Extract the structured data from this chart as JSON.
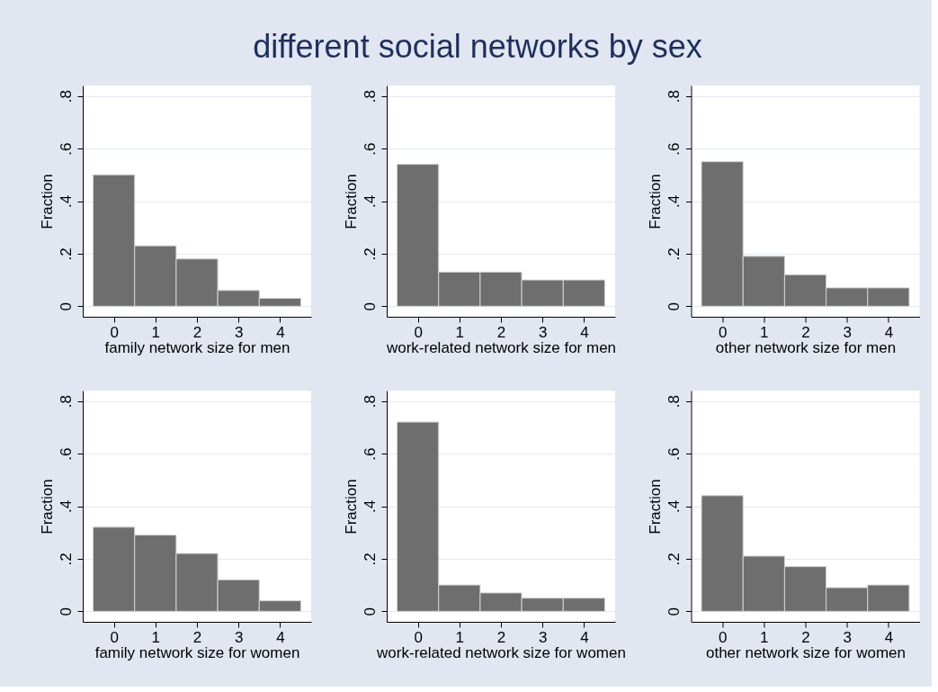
{
  "chart_data": [
    {
      "type": "other",
      "title": "different social networks by sex"
    },
    {
      "type": "histogram",
      "bins": [
        -0.5,
        0.5,
        1.5,
        2.5,
        3.5,
        4.5
      ],
      "values": [
        0.5,
        0.23,
        0.18,
        0.06,
        0.03
      ],
      "color": "#6e6e6e",
      "xlabel": "family network size for men",
      "ylabel": "Fraction",
      "xlim": [
        -0.75,
        4.75
      ],
      "ylim": [
        -0.04,
        0.84
      ],
      "xticks": [
        0,
        1,
        2,
        3,
        4
      ],
      "yticks": [
        0,
        {
          "value": 0.2,
          "label": ".2"
        },
        {
          "value": 0.4,
          "label": ".4"
        },
        {
          "value": 0.6,
          "label": ".6"
        },
        {
          "value": 0.8,
          "label": ".8"
        }
      ],
      "grid": "y"
    },
    {
      "type": "histogram",
      "bins": [
        -0.5,
        0.5,
        1.5,
        2.5,
        3.5,
        4.5
      ],
      "values": [
        0.54,
        0.13,
        0.13,
        0.1,
        0.1
      ],
      "color": "#6e6e6e",
      "xlabel": "work-related network size for men",
      "ylabel": "Fraction",
      "xlim": [
        -0.75,
        4.75
      ],
      "ylim": [
        -0.04,
        0.84
      ],
      "xticks": [
        0,
        1,
        2,
        3,
        4
      ],
      "yticks": [
        0,
        {
          "value": 0.2,
          "label": ".2"
        },
        {
          "value": 0.4,
          "label": ".4"
        },
        {
          "value": 0.6,
          "label": ".6"
        },
        {
          "value": 0.8,
          "label": ".8"
        }
      ],
      "grid": "y"
    },
    {
      "type": "histogram",
      "bins": [
        -0.5,
        0.5,
        1.5,
        2.5,
        3.5,
        4.5
      ],
      "values": [
        0.55,
        0.19,
        0.12,
        0.07,
        0.07
      ],
      "color": "#6e6e6e",
      "xlabel": "other network size for men",
      "ylabel": "Fraction",
      "xlim": [
        -0.75,
        4.75
      ],
      "ylim": [
        -0.04,
        0.84
      ],
      "xticks": [
        0,
        1,
        2,
        3,
        4
      ],
      "yticks": [
        0,
        {
          "value": 0.2,
          "label": ".2"
        },
        {
          "value": 0.4,
          "label": ".4"
        },
        {
          "value": 0.6,
          "label": ".6"
        },
        {
          "value": 0.8,
          "label": ".8"
        }
      ],
      "grid": "y"
    },
    {
      "type": "histogram",
      "bins": [
        -0.5,
        0.5,
        1.5,
        2.5,
        3.5,
        4.5
      ],
      "values": [
        0.32,
        0.29,
        0.22,
        0.12,
        0.04
      ],
      "color": "#6e6e6e",
      "xlabel": "family network size for women",
      "ylabel": "Fraction",
      "xlim": [
        -0.75,
        4.75
      ],
      "ylim": [
        -0.04,
        0.84
      ],
      "xticks": [
        0,
        1,
        2,
        3,
        4
      ],
      "yticks": [
        0,
        {
          "value": 0.2,
          "label": ".2"
        },
        {
          "value": 0.4,
          "label": ".4"
        },
        {
          "value": 0.6,
          "label": ".6"
        },
        {
          "value": 0.8,
          "label": ".8"
        }
      ],
      "grid": "y"
    },
    {
      "type": "histogram",
      "bins": [
        -0.5,
        0.5,
        1.5,
        2.5,
        3.5,
        4.5
      ],
      "values": [
        0.72,
        0.1,
        0.07,
        0.05,
        0.05
      ],
      "color": "#6e6e6e",
      "xlabel": "work-related network size for women",
      "ylabel": "Fraction",
      "xlim": [
        -0.75,
        4.75
      ],
      "ylim": [
        -0.04,
        0.84
      ],
      "xticks": [
        0,
        1,
        2,
        3,
        4
      ],
      "yticks": [
        0,
        {
          "value": 0.2,
          "label": ".2"
        },
        {
          "value": 0.4,
          "label": ".4"
        },
        {
          "value": 0.6,
          "label": ".6"
        },
        {
          "value": 0.8,
          "label": ".8"
        }
      ],
      "grid": "y"
    },
    {
      "type": "histogram",
      "bins": [
        -0.5,
        0.5,
        1.5,
        2.5,
        3.5,
        4.5
      ],
      "values": [
        0.44,
        0.21,
        0.17,
        0.09,
        0.1
      ],
      "color": "#6e6e6e",
      "xlabel": "other network size for women",
      "ylabel": "Fraction",
      "xlim": [
        -0.75,
        4.75
      ],
      "ylim": [
        -0.04,
        0.84
      ],
      "xticks": [
        0,
        1,
        2,
        3,
        4
      ],
      "yticks": [
        0,
        {
          "value": 0.2,
          "label": ".2"
        },
        {
          "value": 0.4,
          "label": ".4"
        },
        {
          "value": 0.6,
          "label": ".6"
        },
        {
          "value": 0.8,
          "label": ".8"
        }
      ],
      "grid": "y"
    }
  ]
}
